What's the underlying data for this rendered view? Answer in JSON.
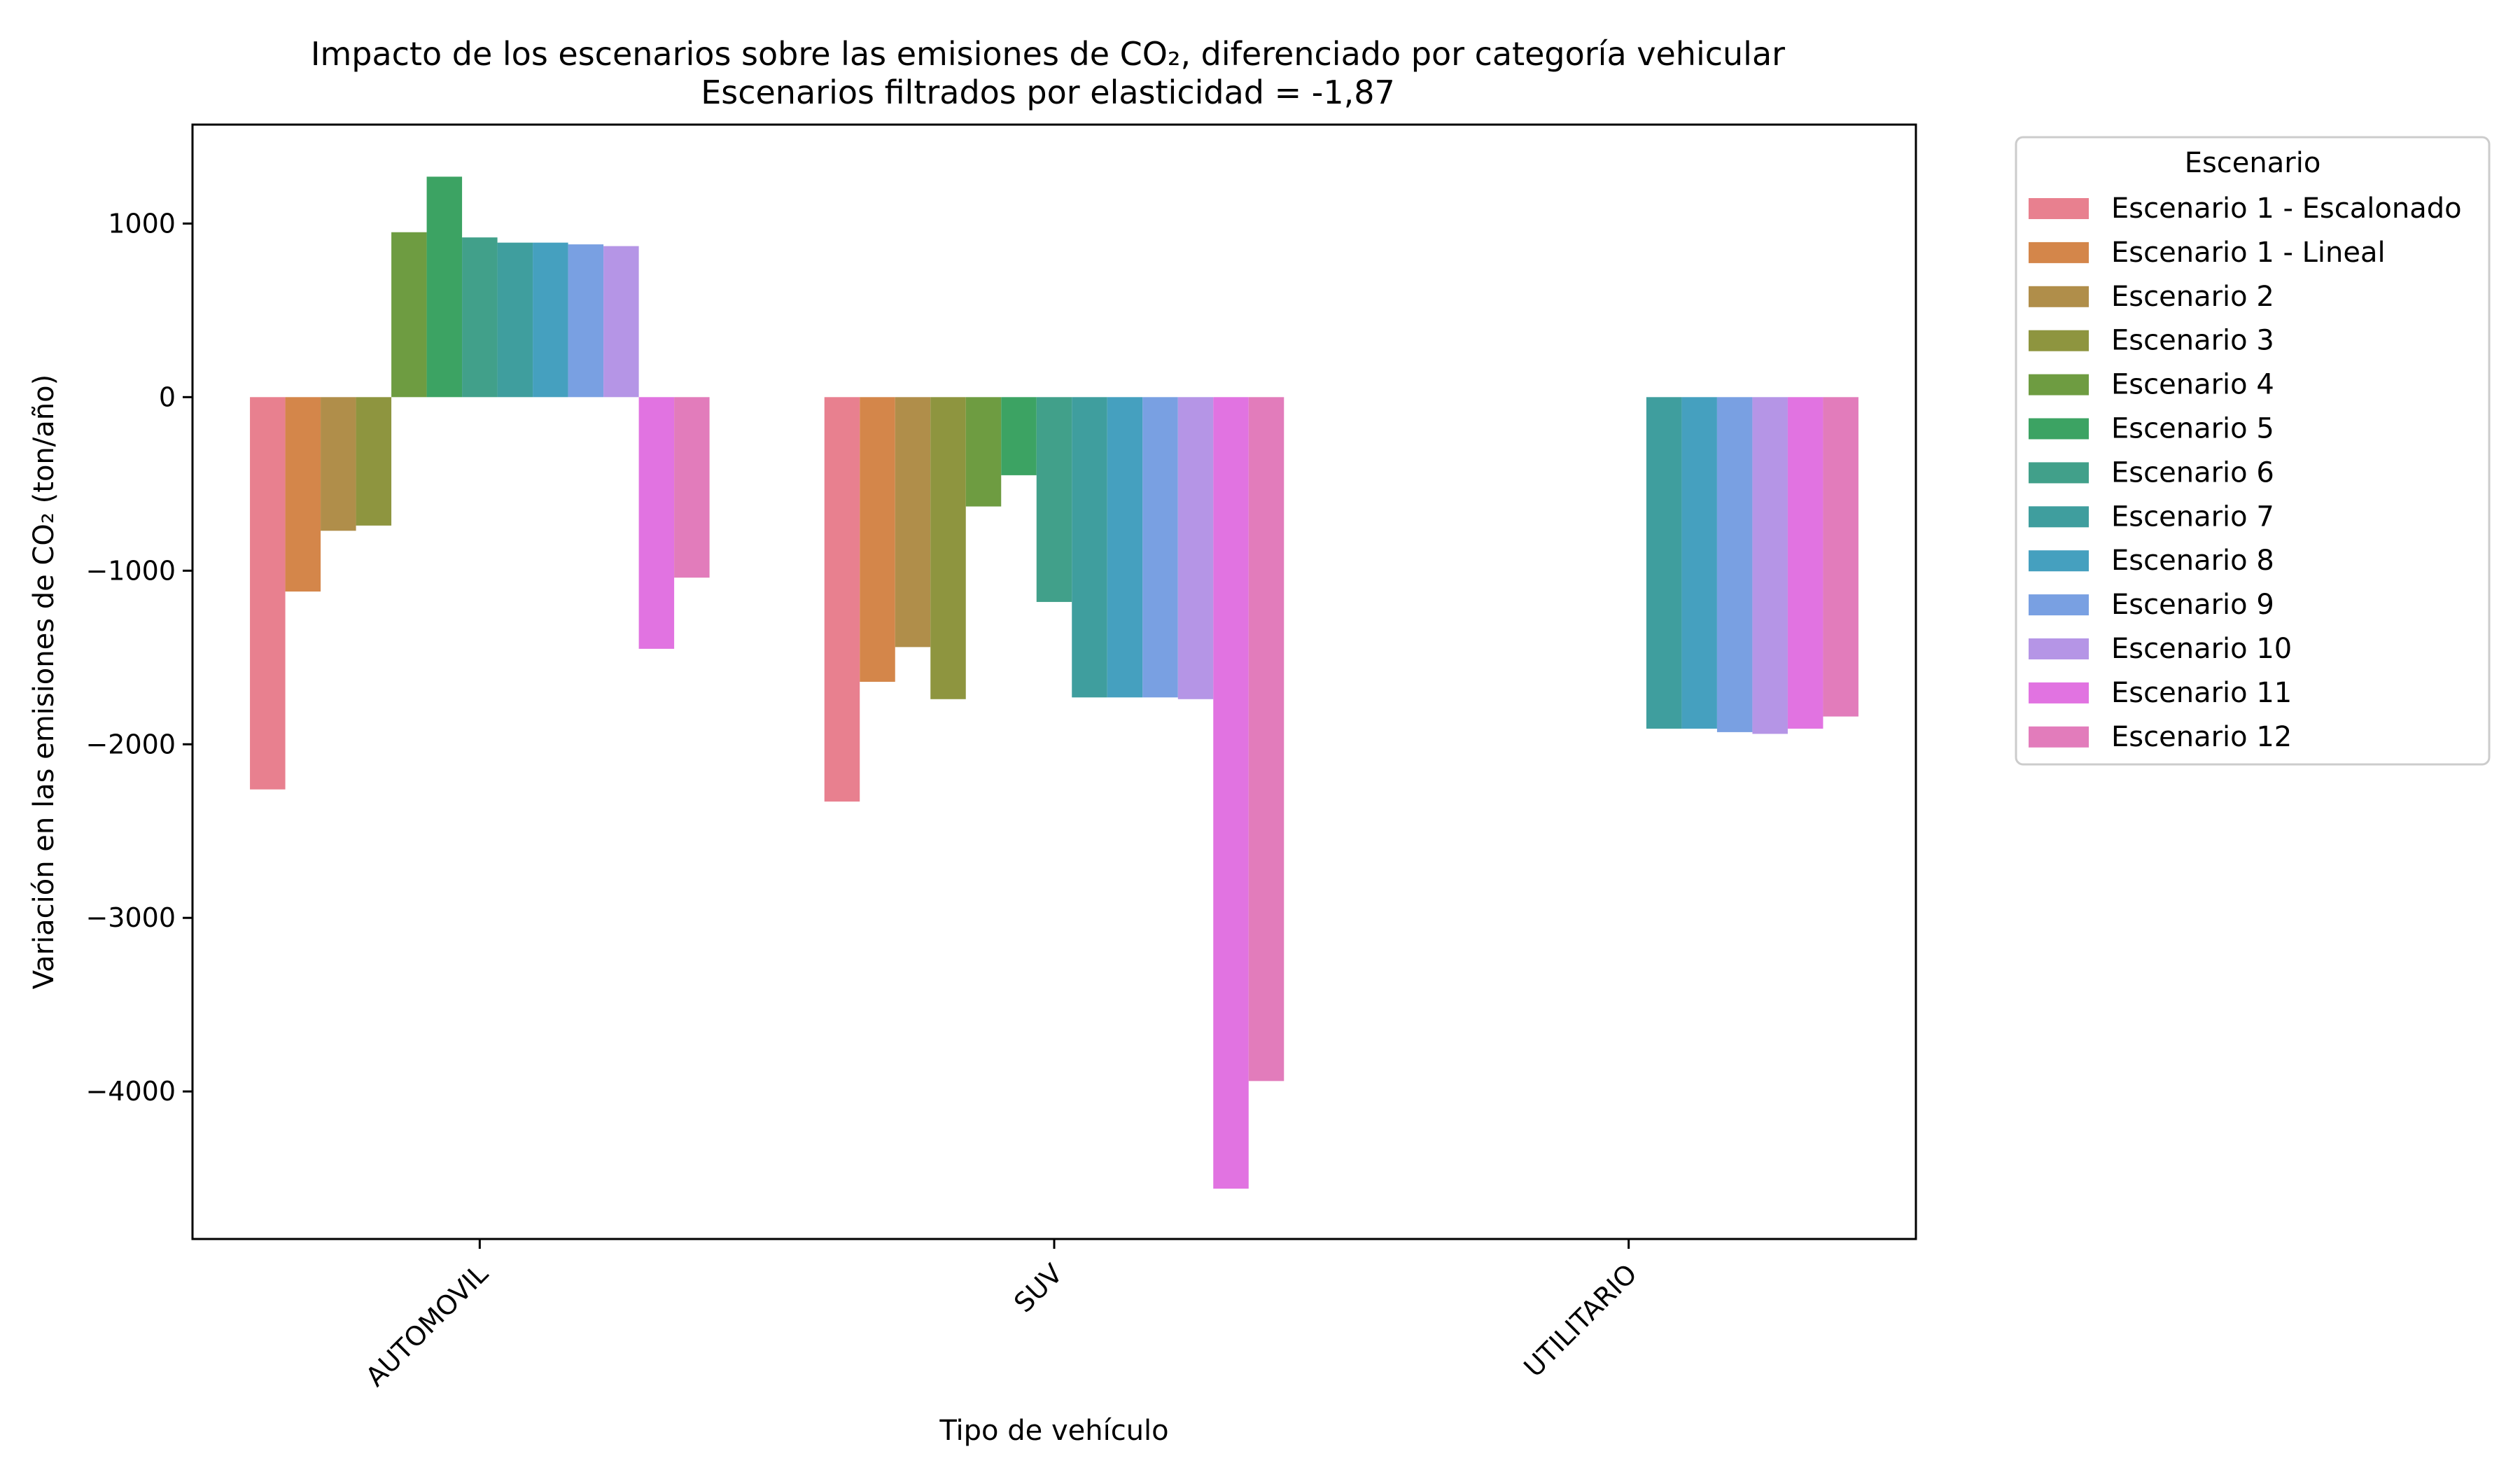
{
  "chart_data": {
    "type": "bar",
    "title": "Impacto de los escenarios sobre las emisiones de CO₂, diferenciado por categoría vehicular",
    "subtitle": "Escenarios filtrados por elasticidad = -1,87",
    "xlabel": "Tipo de vehículo",
    "ylabel": "Variación en las emisiones de CO₂ (ton/año)",
    "categories": [
      "AUTOMOVIL",
      "SUV",
      "UTILITARIO"
    ],
    "ylim": [
      -4850,
      1570
    ],
    "yticks": [
      1000,
      0,
      -1000,
      -2000,
      -3000,
      -4000
    ],
    "ytick_labels": [
      "1000",
      "0",
      "−1000",
      "−2000",
      "−3000",
      "−4000"
    ],
    "grid": false,
    "legend": {
      "title": "Escenario",
      "placement": "outside-upper-right"
    },
    "series": [
      {
        "name": "Escenario 1 - Escalonado",
        "color": "#e8808f",
        "values": [
          -2260,
          -2330,
          null
        ]
      },
      {
        "name": "Escenario 1 - Lineal",
        "color": "#d4864a",
        "values": [
          -1120,
          -1640,
          null
        ]
      },
      {
        "name": "Escenario 2",
        "color": "#b08e4a",
        "values": [
          -770,
          -1440,
          null
        ]
      },
      {
        "name": "Escenario 3",
        "color": "#8e953f",
        "values": [
          -740,
          -1740,
          null
        ]
      },
      {
        "name": "Escenario 4",
        "color": "#6e9c41",
        "values": [
          950,
          -630,
          null
        ]
      },
      {
        "name": "Escenario 5",
        "color": "#3ca363",
        "values": [
          1270,
          -450,
          null
        ]
      },
      {
        "name": "Escenario 6",
        "color": "#41a08a",
        "values": [
          920,
          -1180,
          null
        ]
      },
      {
        "name": "Escenario 7",
        "color": "#3f9e9e",
        "values": [
          890,
          -1730,
          -1910
        ]
      },
      {
        "name": "Escenario 8",
        "color": "#45a0bf",
        "values": [
          890,
          -1730,
          -1910
        ]
      },
      {
        "name": "Escenario 9",
        "color": "#79a0e2",
        "values": [
          880,
          -1730,
          -1930
        ]
      },
      {
        "name": "Escenario 10",
        "color": "#b595e6",
        "values": [
          870,
          -1740,
          -1940
        ]
      },
      {
        "name": "Escenario 11",
        "color": "#e173e1",
        "values": [
          -1450,
          -4560,
          -1910
        ]
      },
      {
        "name": "Escenario 12",
        "color": "#e27cbb",
        "values": [
          -1040,
          -3940,
          -1840
        ]
      }
    ]
  }
}
